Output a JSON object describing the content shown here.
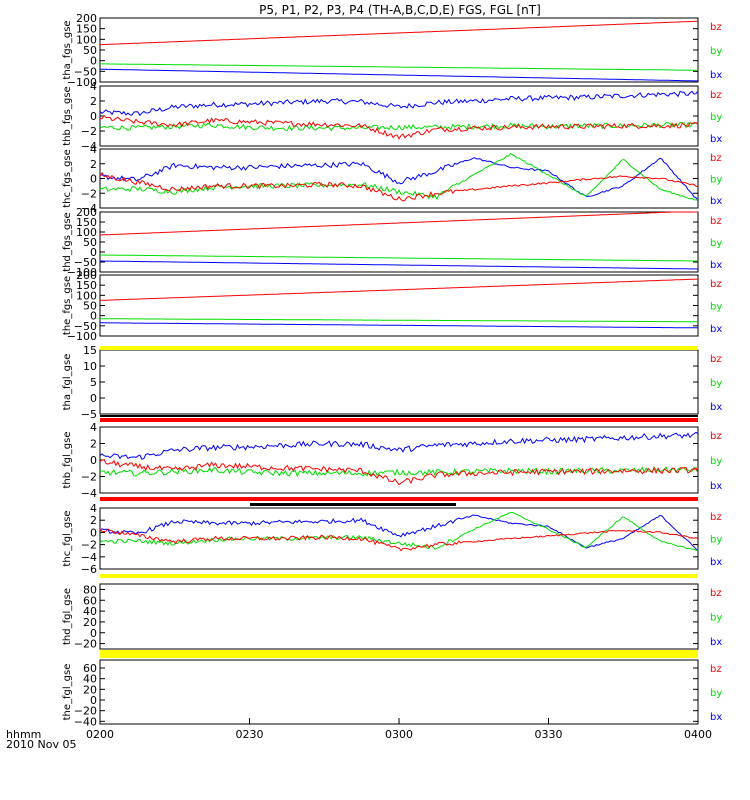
{
  "chart_data": {
    "type": "line",
    "title": "P5, P1, P2, P3, P4 (TH-A,B,C,D,E) FGS, FGL [nT]",
    "colors": {
      "bx": "#0000ff",
      "by": "#00dd00",
      "bz": "#ff0000",
      "yellow": "#ffff00",
      "black": "#000000"
    },
    "xaxis": {
      "range": [
        "02:00",
        "04:00"
      ],
      "ticks": [
        "0200",
        "0230",
        "0300",
        "0330",
        "0400"
      ],
      "label_line1": "hhmm",
      "label_line2": "2010 Nov 05"
    },
    "panels": [
      {
        "ylabel": "tha_fgs_gse",
        "ylim": [
          -100,
          200
        ],
        "ticks": [
          "200",
          "150",
          "100",
          "50",
          "0",
          "−50",
          "−100"
        ],
        "legend": [
          "bz",
          "by",
          "bx"
        ],
        "shape": "linear",
        "series": {
          "bz": [
            75,
            185
          ],
          "by": [
            -15,
            -45
          ],
          "bx": [
            -40,
            -95
          ]
        }
      },
      {
        "ylabel": "thb_fgs_gse",
        "ylim": [
          -4,
          4
        ],
        "ticks": [
          "4",
          "2",
          "0",
          "−2",
          "−4"
        ],
        "legend": [
          "bz",
          "by",
          "bx"
        ],
        "shape": "plasma",
        "series": {
          "bx": [
            0.5,
            0.3,
            1.2,
            1.5,
            1.6,
            1.8,
            2.0,
            1.9,
            1.2,
            1.8,
            2.0,
            2.3,
            2.4,
            2.5,
            2.7,
            2.9,
            3.0
          ],
          "by": [
            -1.5,
            -1.6,
            -1.4,
            -1.2,
            -1.5,
            -1.6,
            -1.6,
            -1.6,
            -1.5,
            -1.5,
            -1.4,
            -1.3,
            -1.4,
            -1.3,
            -1.3,
            -1.2,
            -1.2
          ],
          "bz": [
            -0.2,
            -0.8,
            -1.2,
            -0.6,
            -0.8,
            -1.0,
            -1.1,
            -1.3,
            -2.8,
            -1.8,
            -1.6,
            -1.5,
            -1.4,
            -1.4,
            -1.3,
            -1.3,
            -1.2
          ]
        }
      },
      {
        "ylabel": "thc_fgs_gse",
        "ylim": [
          -4,
          4
        ],
        "ticks": [
          "4",
          "2",
          "0",
          "−2",
          "−4"
        ],
        "legend": [
          "bz",
          "by",
          "bx"
        ],
        "shape": "waves",
        "series": {
          "bx": [
            0.3,
            -0.2,
            1.8,
            1.5,
            1.5,
            1.7,
            1.8,
            2.0,
            -0.5,
            1.0,
            2.8,
            1.5,
            1.0,
            -2.5,
            -1.0,
            2.8,
            -3.0
          ],
          "by": [
            -1.5,
            -1.4,
            -1.8,
            -1.2,
            -1.0,
            -1.0,
            -0.9,
            -0.8,
            -1.8,
            -2.5,
            0.5,
            3.3,
            0.5,
            -2.5,
            2.6,
            -1.5,
            -3.0
          ],
          "bz": [
            0.5,
            -0.5,
            -1.5,
            -1.0,
            -1.0,
            -1.0,
            -0.8,
            -1.0,
            -2.8,
            -2.0,
            -1.5,
            -1.0,
            -0.6,
            -0.1,
            0.3,
            0.0,
            -1.0
          ]
        }
      },
      {
        "ylabel": "thd_fgs_gse",
        "ylim": [
          -100,
          200
        ],
        "ticks": [
          "200",
          "150",
          "100",
          "50",
          "0",
          "−50",
          "−100"
        ],
        "legend": [
          "bz",
          "by",
          "bx"
        ],
        "shape": "linear",
        "series": {
          "bz": [
            85,
            205
          ],
          "by": [
            -15,
            -45
          ],
          "bx": [
            -45,
            -85
          ]
        }
      },
      {
        "ylabel": "the_fgs_gse",
        "ylim": [
          -100,
          200
        ],
        "ticks": [
          "200",
          "150",
          "100",
          "50",
          "0",
          "−50",
          "−100"
        ],
        "legend": [
          "bz",
          "by",
          "bx"
        ],
        "shape": "linear",
        "series": {
          "bz": [
            75,
            180
          ],
          "by": [
            -15,
            -30
          ],
          "bx": [
            -35,
            -60
          ]
        }
      },
      {
        "ylabel": "tha_fgl_gse",
        "ylim": [
          -5,
          15
        ],
        "ticks": [
          "15",
          "10",
          "5",
          "0",
          "−5"
        ],
        "legend": [
          "bz",
          "by",
          "bx"
        ],
        "shape": "bands",
        "topband": "yellow",
        "bottomband": "black_red"
      },
      {
        "ylabel": "thb_fgl_gse",
        "ylim": [
          -4,
          4
        ],
        "ticks": [
          "4",
          "2",
          "0",
          "−2",
          "−4"
        ],
        "legend": [
          "bz",
          "by",
          "bx"
        ],
        "shape": "plasma",
        "bottomband": "red",
        "series": {
          "bx": [
            0.5,
            0.3,
            1.2,
            1.5,
            1.6,
            1.8,
            2.0,
            1.9,
            1.2,
            1.8,
            2.0,
            2.3,
            2.4,
            2.5,
            2.7,
            2.9,
            3.0
          ],
          "by": [
            -1.5,
            -1.6,
            -1.4,
            -1.2,
            -1.5,
            -1.6,
            -1.6,
            -1.6,
            -1.5,
            -1.5,
            -1.4,
            -1.3,
            -1.4,
            -1.3,
            -1.3,
            -1.2,
            -1.2
          ],
          "bz": [
            -0.2,
            -0.8,
            -1.2,
            -0.6,
            -0.8,
            -1.0,
            -1.1,
            -1.3,
            -2.8,
            -1.8,
            -1.6,
            -1.5,
            -1.4,
            -1.4,
            -1.3,
            -1.3,
            -1.2
          ]
        }
      },
      {
        "ylabel": "thc_fgl_gse",
        "ylim": [
          -6,
          4
        ],
        "ticks": [
          "4",
          "2",
          "0",
          "−2",
          "−4",
          "−6"
        ],
        "legend": [
          "bz",
          "by",
          "bx"
        ],
        "shape": "waves",
        "topband": "black_segment",
        "bottomband": "yellow",
        "series": {
          "bx": [
            0.3,
            -0.2,
            1.8,
            1.5,
            1.5,
            1.7,
            1.8,
            2.0,
            -0.5,
            1.0,
            2.8,
            1.5,
            1.0,
            -2.5,
            -1.0,
            2.8,
            -3.0
          ],
          "by": [
            -1.5,
            -1.4,
            -1.8,
            -1.2,
            -1.0,
            -1.0,
            -0.9,
            -0.8,
            -1.8,
            -2.5,
            0.5,
            3.3,
            0.5,
            -2.5,
            2.6,
            -1.5,
            -3.0
          ],
          "bz": [
            0.5,
            -0.5,
            -1.5,
            -1.0,
            -1.0,
            -1.0,
            -0.8,
            -1.0,
            -2.8,
            -2.0,
            -1.5,
            -1.0,
            -0.6,
            -0.1,
            0.3,
            0.0,
            -1.0
          ]
        }
      },
      {
        "ylabel": "thd_fgl_gse",
        "ylim": [
          -30,
          90
        ],
        "ticks": [
          "80",
          "60",
          "40",
          "20",
          "0",
          "−20"
        ],
        "legend": [
          "bz",
          "by",
          "bx"
        ],
        "shape": "bands",
        "bottomband": "yellow"
      },
      {
        "ylabel": "the_fgl_gse",
        "ylim": [
          -45,
          75
        ],
        "ticks": [
          "60",
          "40",
          "20",
          "0",
          "−20",
          "−40"
        ],
        "legend": [
          "bz",
          "by",
          "bx"
        ],
        "shape": "bands"
      }
    ]
  }
}
